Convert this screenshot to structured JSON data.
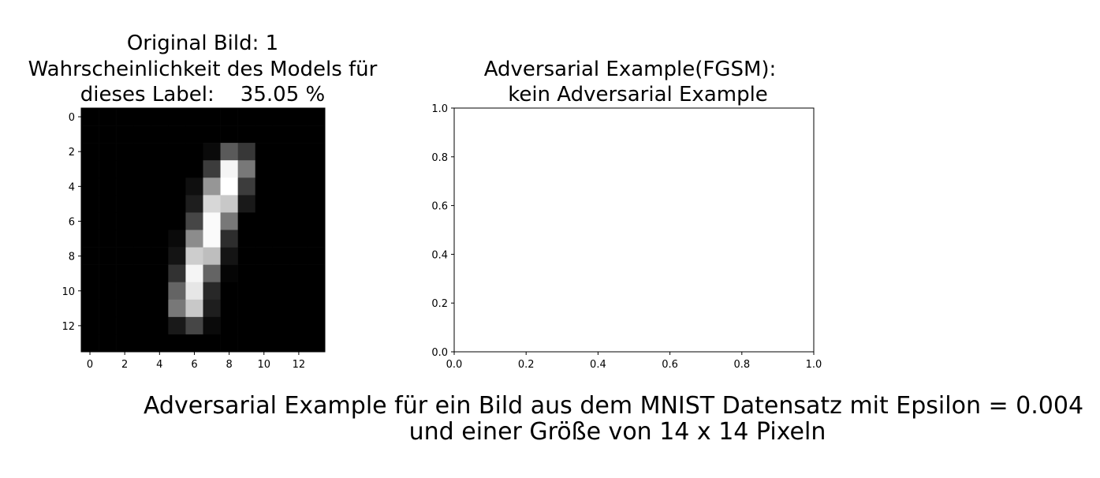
{
  "figure": {
    "suptitle_line1": "Adversarial Example für ein Bild aus dem MNIST Datensatz mit Epsilon = 0.004",
    "suptitle_line2": "und einer Größe von 14 x 14 Pixeln"
  },
  "chart_data": [
    {
      "type": "heatmap",
      "colormap": "gray",
      "title_line1": "Original Bild: 1",
      "title_line2": "Wahrscheinlichkeit des Models für",
      "title_line3": "dieses Label:    35.05 %",
      "x_ticks": [
        "0",
        "2",
        "4",
        "6",
        "8",
        "10",
        "12"
      ],
      "y_ticks": [
        "0",
        "2",
        "4",
        "6",
        "8",
        "10",
        "12"
      ],
      "grid": [
        [
          0,
          0,
          0,
          0,
          0,
          0,
          0,
          0,
          0,
          0,
          0,
          0,
          0,
          0
        ],
        [
          0,
          0,
          0,
          0,
          0,
          0,
          0,
          0,
          0,
          0,
          0,
          0,
          0,
          0
        ],
        [
          0,
          0,
          0,
          0,
          0,
          0,
          0,
          10,
          90,
          55,
          0,
          0,
          0,
          0
        ],
        [
          0,
          0,
          0,
          0,
          0,
          0,
          0,
          60,
          245,
          120,
          0,
          0,
          0,
          0
        ],
        [
          0,
          0,
          0,
          0,
          0,
          0,
          15,
          150,
          255,
          60,
          0,
          0,
          0,
          0
        ],
        [
          0,
          0,
          0,
          0,
          0,
          0,
          30,
          215,
          200,
          25,
          0,
          0,
          0,
          0
        ],
        [
          0,
          0,
          0,
          0,
          0,
          0,
          70,
          250,
          120,
          0,
          0,
          0,
          0,
          0
        ],
        [
          0,
          0,
          0,
          0,
          0,
          10,
          140,
          250,
          45,
          0,
          0,
          0,
          0,
          0
        ],
        [
          0,
          0,
          0,
          0,
          0,
          20,
          205,
          190,
          20,
          0,
          0,
          0,
          0,
          0
        ],
        [
          0,
          0,
          0,
          0,
          0,
          50,
          245,
          100,
          5,
          0,
          0,
          0,
          0,
          0
        ],
        [
          0,
          0,
          0,
          0,
          0,
          100,
          230,
          40,
          0,
          0,
          0,
          0,
          0,
          0
        ],
        [
          0,
          0,
          0,
          0,
          0,
          120,
          200,
          30,
          0,
          0,
          0,
          0,
          0,
          0
        ],
        [
          0,
          0,
          0,
          0,
          0,
          25,
          70,
          10,
          0,
          0,
          0,
          0,
          0,
          0
        ],
        [
          0,
          0,
          0,
          0,
          0,
          0,
          0,
          0,
          0,
          0,
          0,
          0,
          0,
          0
        ]
      ]
    },
    {
      "type": "scatter",
      "title_line1": "Adversarial Example(FGSM):",
      "title_line2": "kein Adversarial Example",
      "xlim": [
        0.0,
        1.0
      ],
      "ylim": [
        0.0,
        1.0
      ],
      "x_ticks": [
        "0.0",
        "0.2",
        "0.4",
        "0.6",
        "0.8",
        "1.0"
      ],
      "y_ticks": [
        "0.0",
        "0.2",
        "0.4",
        "0.6",
        "0.8",
        "1.0"
      ],
      "points": []
    }
  ]
}
